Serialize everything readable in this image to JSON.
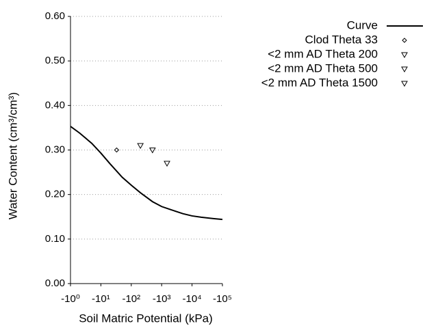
{
  "chart_data": {
    "type": "line",
    "xlabel": "Soil Matric Potential (kPa)",
    "ylabel": "Water Content (cm³/cm³)",
    "xscale": "log",
    "xlim": [
      1,
      100000
    ],
    "xticks": [
      {
        "value": 1,
        "label": "-10⁰"
      },
      {
        "value": 10,
        "label": "-10¹"
      },
      {
        "value": 100,
        "label": "-10²"
      },
      {
        "value": 1000,
        "label": "-10³"
      },
      {
        "value": 10000,
        "label": "-10⁴"
      },
      {
        "value": 100000,
        "label": "-10⁵"
      }
    ],
    "ylim": [
      0,
      0.6
    ],
    "yticks": [
      {
        "value": 0,
        "label": "0.00"
      },
      {
        "value": 0.1,
        "label": "0.10"
      },
      {
        "value": 0.2,
        "label": "0.20"
      },
      {
        "value": 0.3,
        "label": "0.30"
      },
      {
        "value": 0.4,
        "label": "0.40"
      },
      {
        "value": 0.5,
        "label": "0.50"
      },
      {
        "value": 0.6,
        "label": "0.60"
      }
    ],
    "grid": true,
    "legend": "outside-right",
    "series": [
      {
        "name": "Curve",
        "type": "line",
        "color": "#000000",
        "x": [
          1,
          2,
          5,
          10,
          20,
          50,
          100,
          200,
          500,
          1000,
          2000,
          5000,
          10000,
          20000,
          50000,
          100000
        ],
        "values": [
          0.353,
          0.338,
          0.315,
          0.293,
          0.269,
          0.239,
          0.221,
          0.204,
          0.184,
          0.173,
          0.166,
          0.157,
          0.152,
          0.149,
          0.146,
          0.144
        ]
      },
      {
        "name": "Clod Theta 33",
        "type": "scatter",
        "marker": "diamond",
        "color": "#000000",
        "x": [
          33
        ],
        "values": [
          0.3
        ]
      },
      {
        "name": "<2 mm AD Theta 200",
        "type": "scatter",
        "marker": "triangle-down",
        "color": "#000000",
        "x": [
          200
        ],
        "values": [
          0.31
        ]
      },
      {
        "name": "<2 mm AD Theta 500",
        "type": "scatter",
        "marker": "triangle-down",
        "color": "#000000",
        "x": [
          500
        ],
        "values": [
          0.3
        ]
      },
      {
        "name": "<2 mm AD Theta 1500",
        "type": "scatter",
        "marker": "triangle-down",
        "color": "#000000",
        "x": [
          1500
        ],
        "values": [
          0.27
        ]
      }
    ]
  }
}
